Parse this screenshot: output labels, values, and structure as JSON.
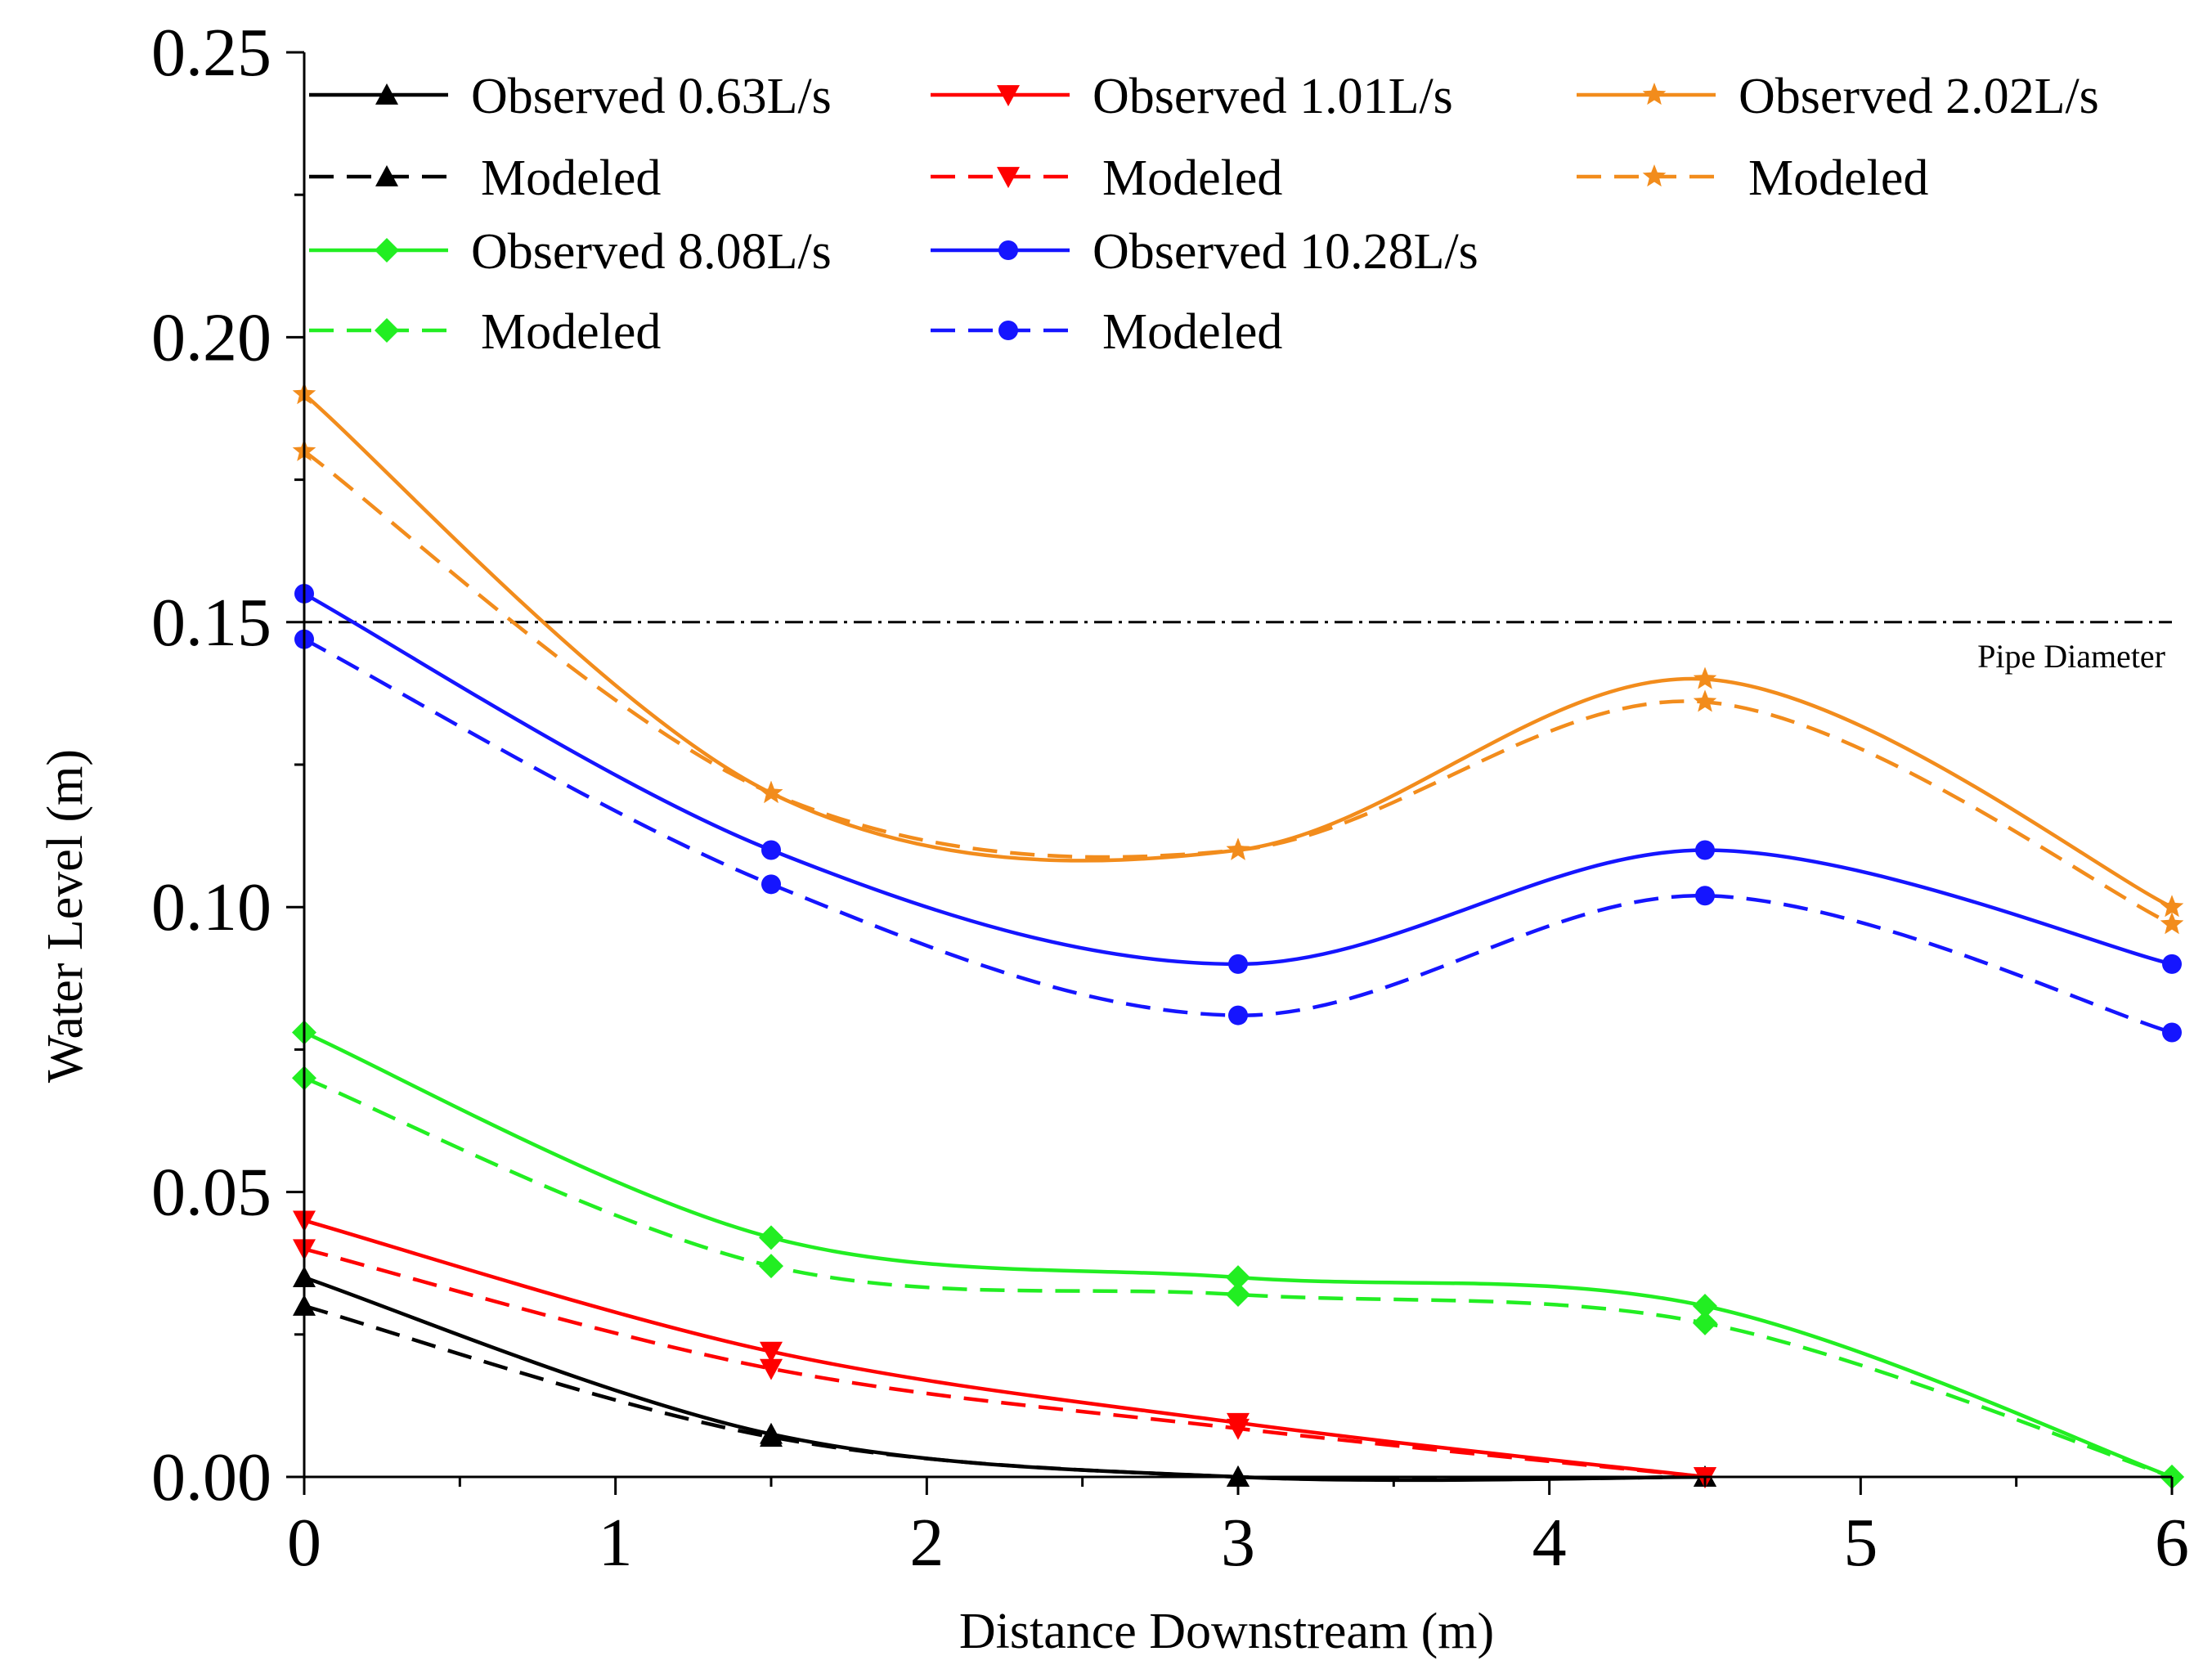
{
  "chart_data": {
    "type": "line",
    "title": "",
    "xlabel": "Distance Downstream (m)",
    "ylabel": "Water Level (m)",
    "xlim": [
      0,
      6
    ],
    "ylim": [
      0,
      0.25
    ],
    "x_ticks": [
      0,
      1,
      2,
      3,
      4,
      5,
      6
    ],
    "x_tick_labels": [
      "0",
      "1",
      "2",
      "3",
      "4",
      "5",
      "6"
    ],
    "y_ticks": [
      0,
      0.05,
      0.1,
      0.15,
      0.2,
      0.25
    ],
    "y_tick_labels": [
      "0.00",
      "0.05",
      "0.10",
      "0.15",
      "0.20",
      "0.25"
    ],
    "grid": false,
    "legend_position": "top",
    "x": [
      0,
      1.5,
      3,
      4.5,
      6
    ],
    "reference_lines": [
      {
        "label": "Pipe Diameter",
        "y": 0.15,
        "style": "dash-dot",
        "color": "#000000"
      }
    ],
    "series": [
      {
        "name": "Observed 0.63L/s",
        "color": "#000000",
        "dash": false,
        "marker": "triangle-up",
        "x": [
          0,
          1.5,
          3,
          4.5
        ],
        "values": [
          0.035,
          0.0075,
          0.0,
          0.0
        ]
      },
      {
        "name": "Modeled",
        "group": "0.63L/s",
        "color": "#000000",
        "dash": true,
        "marker": "triangle-up",
        "x": [
          0,
          1.5,
          3,
          4.5
        ],
        "values": [
          0.03,
          0.007,
          0.0,
          0.0
        ]
      },
      {
        "name": "Observed 1.01L/s",
        "color": "#ff0000",
        "dash": false,
        "marker": "triangle-down",
        "x": [
          0,
          1.5,
          3,
          4.5
        ],
        "values": [
          0.045,
          0.022,
          0.0095,
          0.0
        ]
      },
      {
        "name": "Modeled",
        "group": "1.01L/s",
        "color": "#ff0000",
        "dash": true,
        "marker": "triangle-down",
        "x": [
          0,
          1.5,
          3,
          4.5
        ],
        "values": [
          0.04,
          0.019,
          0.0085,
          0.0
        ]
      },
      {
        "name": "Observed 2.02L/s",
        "color": "#f28c1c",
        "dash": false,
        "marker": "star",
        "x": [
          0,
          1.5,
          3,
          4.5,
          6
        ],
        "values": [
          0.19,
          0.12,
          0.11,
          0.14,
          0.1
        ]
      },
      {
        "name": "Modeled",
        "group": "2.02L/s",
        "color": "#f28c1c",
        "dash": true,
        "marker": "star",
        "x": [
          0,
          1.5,
          3,
          4.5,
          6
        ],
        "values": [
          0.18,
          0.12,
          0.11,
          0.136,
          0.097
        ]
      },
      {
        "name": "Observed 8.08L/s",
        "color": "#22ee22",
        "dash": false,
        "marker": "diamond",
        "x": [
          0,
          1.5,
          3,
          4.5,
          6
        ],
        "values": [
          0.078,
          0.042,
          0.035,
          0.03,
          0.0
        ]
      },
      {
        "name": "Modeled",
        "group": "8.08L/s",
        "color": "#22ee22",
        "dash": true,
        "marker": "diamond",
        "x": [
          0,
          1.5,
          3,
          4.5,
          6
        ],
        "values": [
          0.07,
          0.037,
          0.032,
          0.027,
          0.0
        ]
      },
      {
        "name": "Observed 10.28L/s",
        "color": "#1515ff",
        "dash": false,
        "marker": "circle",
        "x": [
          0,
          1.5,
          3,
          4.5,
          6
        ],
        "values": [
          0.155,
          0.11,
          0.09,
          0.11,
          0.09
        ]
      },
      {
        "name": "Modeled",
        "group": "10.28L/s",
        "color": "#1515ff",
        "dash": true,
        "marker": "circle",
        "x": [
          0,
          1.5,
          3,
          4.5,
          6
        ],
        "values": [
          0.147,
          0.104,
          0.081,
          0.102,
          0.078
        ]
      }
    ]
  }
}
